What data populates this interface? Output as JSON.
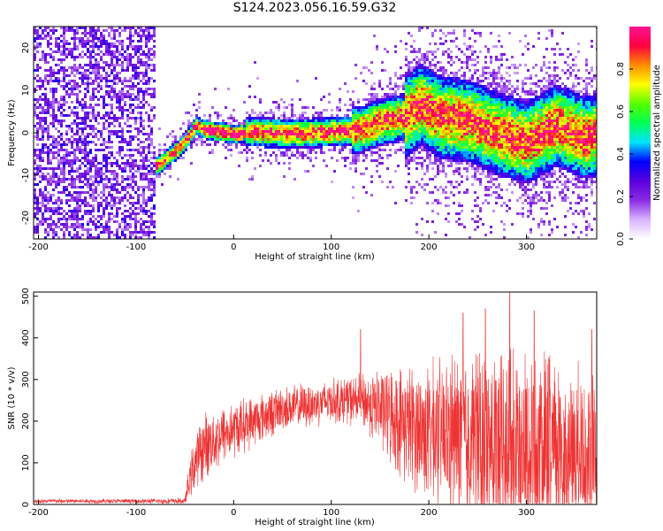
{
  "title": "S124.2023.056.16.59.G32",
  "chart_data": [
    {
      "type": "heatmap",
      "xlabel": "Height of straight line (km)",
      "ylabel": "Frequency (Hz)",
      "xlim": [
        -205,
        372
      ],
      "ylim": [
        -25,
        25
      ],
      "xticks": [
        -200,
        -100,
        0,
        100,
        200,
        300
      ],
      "yticks": [
        -20,
        -10,
        0,
        10,
        20
      ],
      "colorbar": {
        "label": "Normalized spectral amplitude",
        "range": [
          0.0,
          1.0
        ],
        "ticks": [
          "0.0",
          "0.2",
          "0.4",
          "0.6",
          "0.8"
        ],
        "colors": [
          "#ffffff",
          "#d9b3ff",
          "#8a2be2",
          "#5a00e0",
          "#0000ff",
          "#00e5ff",
          "#00ff55",
          "#55ff00",
          "#ffff00",
          "#ff8c00",
          "#ff0040",
          "#ff1493"
        ]
      },
      "grid": false,
      "description_points": {
        "noise_region_x": [
          -205,
          -82
        ],
        "ridge_x": [
          -82,
          -55,
          -45,
          -40,
          -30,
          0,
          20,
          60,
          100,
          130,
          150,
          175,
          190,
          210,
          240,
          270,
          300,
          330,
          360,
          372
        ],
        "ridge_y": [
          -8,
          -3,
          0,
          2,
          1,
          0,
          0.5,
          0,
          0.5,
          1,
          3,
          4,
          7,
          4,
          3,
          0,
          -2,
          2,
          -1,
          0
        ]
      }
    },
    {
      "type": "line",
      "xlabel": "Height of straight line (km)",
      "ylabel": "SNR (10 * v/v)",
      "xlim": [
        -205,
        372
      ],
      "ylim": [
        0,
        510
      ],
      "xticks": [
        -200,
        -100,
        0,
        100,
        200,
        300
      ],
      "yticks": [
        0,
        100,
        200,
        300,
        400,
        500
      ],
      "grid": false,
      "color": "#ee3333",
      "envelope": {
        "x": [
          -205,
          -100,
          -50,
          -45,
          -40,
          -30,
          -10,
          20,
          50,
          80,
          100,
          130,
          150,
          170,
          200,
          230,
          260,
          290,
          320,
          350,
          372
        ],
        "mean": [
          8,
          8,
          8,
          60,
          100,
          140,
          170,
          200,
          230,
          240,
          250,
          250,
          230,
          200,
          170,
          160,
          150,
          140,
          130,
          120,
          120
        ],
        "spread": [
          6,
          6,
          8,
          50,
          80,
          90,
          80,
          70,
          60,
          60,
          60,
          70,
          110,
          150,
          190,
          230,
          250,
          260,
          260,
          240,
          220
        ]
      },
      "peaks": [
        {
          "x": 130,
          "y": 420
        },
        {
          "x": 235,
          "y": 460
        },
        {
          "x": 258,
          "y": 470
        },
        {
          "x": 283,
          "y": 508
        },
        {
          "x": 308,
          "y": 465
        },
        {
          "x": 367,
          "y": 420
        }
      ]
    }
  ]
}
